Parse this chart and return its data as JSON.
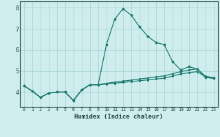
{
  "xlabel": "Humidex (Indice chaleur)",
  "x": [
    0,
    1,
    2,
    3,
    4,
    5,
    6,
    7,
    8,
    9,
    10,
    11,
    12,
    13,
    14,
    15,
    16,
    17,
    18,
    19,
    20,
    21,
    22,
    23
  ],
  "line1": [
    4.3,
    4.05,
    3.75,
    3.95,
    4.0,
    4.0,
    3.6,
    4.1,
    4.35,
    4.35,
    6.25,
    7.45,
    7.95,
    7.65,
    7.1,
    6.65,
    6.35,
    6.25,
    5.45,
    5.05,
    5.2,
    5.1,
    4.7,
    4.65
  ],
  "line2": [
    4.3,
    4.05,
    3.75,
    3.95,
    4.0,
    4.0,
    3.6,
    4.1,
    4.35,
    4.35,
    4.42,
    4.47,
    4.52,
    4.57,
    4.62,
    4.67,
    4.72,
    4.77,
    4.87,
    4.97,
    5.05,
    5.1,
    4.75,
    4.68
  ],
  "line3": [
    4.3,
    4.05,
    3.75,
    3.95,
    4.0,
    4.0,
    3.6,
    4.1,
    4.35,
    4.35,
    4.38,
    4.42,
    4.46,
    4.5,
    4.54,
    4.58,
    4.62,
    4.66,
    4.76,
    4.86,
    4.92,
    4.97,
    4.72,
    4.65
  ],
  "line_color": "#1a7a6e",
  "bg_color": "#d0eded",
  "grid_color": "#a8d4d4",
  "ylim": [
    3.3,
    8.3
  ],
  "xlim": [
    -0.5,
    23.5
  ]
}
